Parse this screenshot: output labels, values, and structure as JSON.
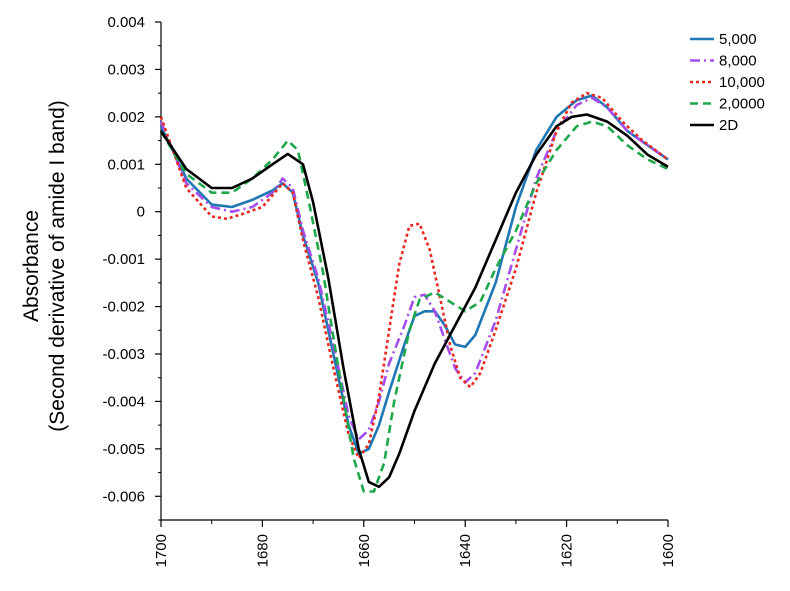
{
  "chart_data": {
    "type": "line",
    "title": "",
    "xlabel": "",
    "ylabel_lines": [
      "Absorbance",
      "(Second derivative of amide I band)"
    ],
    "xlim": [
      1700,
      1600
    ],
    "ylim": [
      -0.0065,
      0.004
    ],
    "x_ticks": [
      1700,
      1680,
      1660,
      1640,
      1620,
      1600
    ],
    "x_tick_labels": [
      "1700",
      "1680",
      "1660",
      "1640",
      "1620",
      "1600"
    ],
    "y_ticks": [
      0.004,
      0.003,
      0.002,
      0.001,
      0,
      -0.001,
      -0.002,
      -0.003,
      -0.004,
      -0.005,
      -0.006
    ],
    "y_tick_labels": [
      "0.004",
      "0.003",
      "0.002",
      "0.001",
      "0",
      "-0.001",
      "-0.002",
      "-0.003",
      "-0.004",
      "-0.005",
      "-0.006"
    ],
    "grid": false,
    "legend_position": "top-right",
    "series": [
      {
        "name": "5,000",
        "color": "#1f77b4",
        "dash": "solid",
        "points": [
          [
            1700,
            0.0018
          ],
          [
            1695,
            0.0007
          ],
          [
            1690,
            0.00015
          ],
          [
            1686,
            0.0001
          ],
          [
            1682,
            0.00025
          ],
          [
            1678,
            0.00045
          ],
          [
            1676,
            0.0006
          ],
          [
            1674,
            0.0004
          ],
          [
            1672,
            -0.0005
          ],
          [
            1669,
            -0.0015
          ],
          [
            1666,
            -0.003
          ],
          [
            1663,
            -0.0045
          ],
          [
            1661,
            -0.0051
          ],
          [
            1659,
            -0.005
          ],
          [
            1657,
            -0.0045
          ],
          [
            1655,
            -0.0038
          ],
          [
            1652,
            -0.0028
          ],
          [
            1650,
            -0.0022
          ],
          [
            1648,
            -0.0021
          ],
          [
            1646,
            -0.0021
          ],
          [
            1644,
            -0.0024
          ],
          [
            1642,
            -0.0028
          ],
          [
            1640,
            -0.00285
          ],
          [
            1638,
            -0.0026
          ],
          [
            1634,
            -0.0015
          ],
          [
            1630,
            0.0001
          ],
          [
            1626,
            0.0013
          ],
          [
            1622,
            0.002
          ],
          [
            1618,
            0.00235
          ],
          [
            1615,
            0.00245
          ],
          [
            1612,
            0.0022
          ],
          [
            1608,
            0.0017
          ],
          [
            1604,
            0.0014
          ],
          [
            1600,
            0.0011
          ]
        ]
      },
      {
        "name": "8,000",
        "color": "#a64ded",
        "dash": "dashdot",
        "points": [
          [
            1700,
            0.0019
          ],
          [
            1695,
            0.0006
          ],
          [
            1690,
            0.0001
          ],
          [
            1686,
            0.0
          ],
          [
            1682,
            0.0001
          ],
          [
            1678,
            0.0004
          ],
          [
            1676,
            0.0007
          ],
          [
            1674,
            0.0005
          ],
          [
            1672,
            -0.0004
          ],
          [
            1669,
            -0.0014
          ],
          [
            1666,
            -0.0028
          ],
          [
            1663,
            -0.0043
          ],
          [
            1661,
            -0.0048
          ],
          [
            1659,
            -0.0046
          ],
          [
            1657,
            -0.004
          ],
          [
            1655,
            -0.0032
          ],
          [
            1652,
            -0.0024
          ],
          [
            1650,
            -0.0018
          ],
          [
            1648,
            -0.00175
          ],
          [
            1646,
            -0.0021
          ],
          [
            1644,
            -0.0027
          ],
          [
            1642,
            -0.0033
          ],
          [
            1640,
            -0.0036
          ],
          [
            1638,
            -0.0034
          ],
          [
            1634,
            -0.0023
          ],
          [
            1630,
            -0.0008
          ],
          [
            1626,
            0.0007
          ],
          [
            1622,
            0.0017
          ],
          [
            1618,
            0.00225
          ],
          [
            1615,
            0.0024
          ],
          [
            1612,
            0.0022
          ],
          [
            1608,
            0.0017
          ],
          [
            1604,
            0.0014
          ],
          [
            1600,
            0.0011
          ]
        ]
      },
      {
        "name": "10,000",
        "color": "#e8281f",
        "dash": "dotted",
        "points": [
          [
            1700,
            0.002
          ],
          [
            1695,
            0.0005
          ],
          [
            1690,
            -0.0001
          ],
          [
            1687,
            -0.00015
          ],
          [
            1684,
            -5e-05
          ],
          [
            1680,
            0.0001
          ],
          [
            1676,
            0.0006
          ],
          [
            1674,
            0.0004
          ],
          [
            1672,
            -0.0006
          ],
          [
            1669,
            -0.0018
          ],
          [
            1666,
            -0.0033
          ],
          [
            1663,
            -0.0047
          ],
          [
            1661,
            -0.0052
          ],
          [
            1659,
            -0.0049
          ],
          [
            1657,
            -0.0039
          ],
          [
            1655,
            -0.0025
          ],
          [
            1653,
            -0.0011
          ],
          [
            1651,
            -0.0003
          ],
          [
            1649,
            -0.00025
          ],
          [
            1647,
            -0.0008
          ],
          [
            1645,
            -0.0018
          ],
          [
            1643,
            -0.0028
          ],
          [
            1641,
            -0.0035
          ],
          [
            1639,
            -0.0037
          ],
          [
            1637,
            -0.0034
          ],
          [
            1634,
            -0.0025
          ],
          [
            1630,
            -0.0012
          ],
          [
            1626,
            0.0004
          ],
          [
            1622,
            0.0017
          ],
          [
            1619,
            0.0023
          ],
          [
            1616,
            0.0025
          ],
          [
            1613,
            0.0024
          ],
          [
            1609,
            0.0019
          ],
          [
            1605,
            0.0015
          ],
          [
            1600,
            0.0011
          ]
        ]
      },
      {
        "name": "2,0000",
        "color": "#1fa84a",
        "dash": "dashed",
        "points": [
          [
            1700,
            0.0017
          ],
          [
            1695,
            0.0008
          ],
          [
            1690,
            0.0004
          ],
          [
            1686,
            0.0004
          ],
          [
            1682,
            0.0007
          ],
          [
            1678,
            0.0011
          ],
          [
            1675,
            0.0015
          ],
          [
            1673,
            0.0013
          ],
          [
            1671,
            0.0003
          ],
          [
            1668,
            -0.0013
          ],
          [
            1665,
            -0.0033
          ],
          [
            1662,
            -0.0052
          ],
          [
            1660,
            -0.0059
          ],
          [
            1658,
            -0.0059
          ],
          [
            1656,
            -0.0053
          ],
          [
            1654,
            -0.004
          ],
          [
            1651,
            -0.0025
          ],
          [
            1649,
            -0.00185
          ],
          [
            1646,
            -0.0017
          ],
          [
            1643,
            -0.0019
          ],
          [
            1640,
            -0.0021
          ],
          [
            1637,
            -0.0019
          ],
          [
            1634,
            -0.0012
          ],
          [
            1630,
            -0.0004
          ],
          [
            1626,
            0.0006
          ],
          [
            1622,
            0.0013
          ],
          [
            1618,
            0.0018
          ],
          [
            1615,
            0.0019
          ],
          [
            1612,
            0.0018
          ],
          [
            1608,
            0.0014
          ],
          [
            1604,
            0.0011
          ],
          [
            1600,
            0.0009
          ]
        ]
      },
      {
        "name": "2D",
        "color": "#000000",
        "dash": "solid",
        "points": [
          [
            1700,
            0.0017
          ],
          [
            1695,
            0.0009
          ],
          [
            1690,
            0.0005
          ],
          [
            1686,
            0.0005
          ],
          [
            1682,
            0.0007
          ],
          [
            1678,
            0.001
          ],
          [
            1675,
            0.00122
          ],
          [
            1672,
            0.001
          ],
          [
            1670,
            0.0002
          ],
          [
            1667,
            -0.0014
          ],
          [
            1664,
            -0.0033
          ],
          [
            1661,
            -0.005
          ],
          [
            1659,
            -0.0057
          ],
          [
            1657,
            -0.0058
          ],
          [
            1655,
            -0.0056
          ],
          [
            1653,
            -0.0051
          ],
          [
            1650,
            -0.0042
          ],
          [
            1646,
            -0.0032
          ],
          [
            1642,
            -0.0024
          ],
          [
            1638,
            -0.0016
          ],
          [
            1634,
            -0.0006
          ],
          [
            1630,
            0.0004
          ],
          [
            1626,
            0.0012
          ],
          [
            1622,
            0.0018
          ],
          [
            1619,
            0.002
          ],
          [
            1616,
            0.00205
          ],
          [
            1612,
            0.0019
          ],
          [
            1608,
            0.0016
          ],
          [
            1604,
            0.0012
          ],
          [
            1600,
            0.00095
          ]
        ]
      }
    ]
  }
}
